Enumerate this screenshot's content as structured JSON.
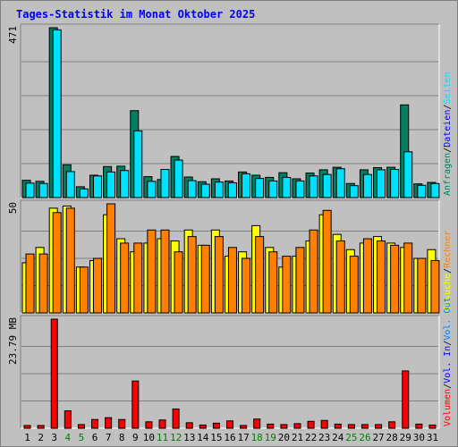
{
  "chart_data": {
    "type": "bar",
    "title": "Tages-Statistik im Monat Oktober 2025",
    "categories": [
      "1",
      "2",
      "3",
      "4",
      "5",
      "6",
      "7",
      "8",
      "9",
      "10",
      "11",
      "12",
      "13",
      "14",
      "15",
      "16",
      "17",
      "18",
      "19",
      "20",
      "21",
      "22",
      "23",
      "24",
      "25",
      "26",
      "27",
      "28",
      "29",
      "30",
      "31"
    ],
    "weekend_days": [
      "4",
      "5",
      "11",
      "12",
      "18",
      "19",
      "25",
      "26"
    ],
    "colors": {
      "background": "#c0c0c0",
      "title": "#0000ff",
      "weekday_label": "#000000",
      "weekend_label": "#008000",
      "grid": "#808080",
      "anfragen": "#008060",
      "dateien": "#0000ff",
      "seiten": "#00e0ff",
      "besuche": "#ffff00",
      "rechner": "#ff8000",
      "vol_out": "#0080ff",
      "vol_in": "#0000ff",
      "volumen": "#ff0000",
      "kb_text": "#000000"
    },
    "panels": [
      {
        "id": "requests",
        "max_label": "471",
        "ylim": [
          0,
          471
        ],
        "legend": [
          {
            "label": "Anfragen",
            "color_key": "anfragen"
          },
          {
            "label": "/",
            "color_key": "kb_text"
          },
          {
            "label": "Dateien",
            "color_key": "dateien"
          },
          {
            "label": "/",
            "color_key": "kb_text"
          },
          {
            "label": "Seiten",
            "color_key": "seiten"
          }
        ],
        "series": [
          {
            "name": "Anfragen",
            "color_key": "anfragen",
            "values": [
              48,
              45,
              471,
              91,
              30,
              62,
              86,
              87,
              241,
              58,
              50,
              114,
              57,
              44,
              52,
              46,
              71,
              62,
              56,
              69,
              52,
              68,
              77,
              84,
              39,
              77,
              83,
              84,
              257,
              38,
              42
            ]
          },
          {
            "name": "Seiten",
            "color_key": "seiten",
            "values": [
              40,
              39,
              465,
              72,
              24,
              60,
              71,
              75,
              185,
              45,
              78,
              104,
              47,
              37,
              43,
              41,
              66,
              53,
              46,
              56,
              46,
              60,
              64,
              80,
              33,
              64,
              77,
              78,
              127,
              34,
              39
            ]
          }
        ]
      },
      {
        "id": "visits",
        "max_label": "50",
        "ylim": [
          0,
          50
        ],
        "legend": [
          {
            "label": "Besuche",
            "color_key": "besuche"
          },
          {
            "label": "/",
            "color_key": "kb_text"
          },
          {
            "label": "Rechner",
            "color_key": "rechner"
          }
        ],
        "series": [
          {
            "name": "Besuche",
            "color_key": "besuche",
            "values": [
              23,
              30,
              48,
              49,
              21,
              24,
              45,
              34,
              28,
              32,
              34,
              33,
              38,
              31,
              38,
              26,
              28,
              40,
              30,
              21,
              26,
              33,
              45,
              36,
              29,
              32,
              35,
              32,
              30,
              25,
              29
            ]
          },
          {
            "name": "Rechner",
            "color_key": "rechner",
            "values": [
              27,
              27,
              46,
              48,
              21,
              25,
              50,
              32,
              32,
              38,
              38,
              28,
              35,
              31,
              35,
              30,
              25,
              35,
              28,
              26,
              30,
              38,
              47,
              33,
              26,
              34,
              33,
              31,
              32,
              25,
              24
            ]
          }
        ]
      },
      {
        "id": "volume",
        "max_label": "23.79 MB",
        "ylim": [
          0,
          23.79
        ],
        "legend": [
          {
            "label": "Volumen",
            "color_key": "volumen"
          },
          {
            "label": "/",
            "color_key": "kb_text"
          },
          {
            "label": "Vol. In",
            "color_key": "vol_in"
          },
          {
            "label": "/",
            "color_key": "kb_text"
          },
          {
            "label": "Vol. Out",
            "color_key": "vol_out"
          }
        ],
        "series": [
          {
            "name": "Volumen",
            "color_key": "volumen",
            "values": [
              0.6,
              0.6,
              23.79,
              3.8,
              0.8,
              1.9,
              2.3,
              1.9,
              10.3,
              1.4,
              1.8,
              4.2,
              1.2,
              0.7,
              1.1,
              1.6,
              0.6,
              2.0,
              0.9,
              0.8,
              1.0,
              1.5,
              1.7,
              0.9,
              0.8,
              0.8,
              0.8,
              1.4,
              12.5,
              0.9,
              0.7
            ]
          }
        ]
      }
    ]
  }
}
